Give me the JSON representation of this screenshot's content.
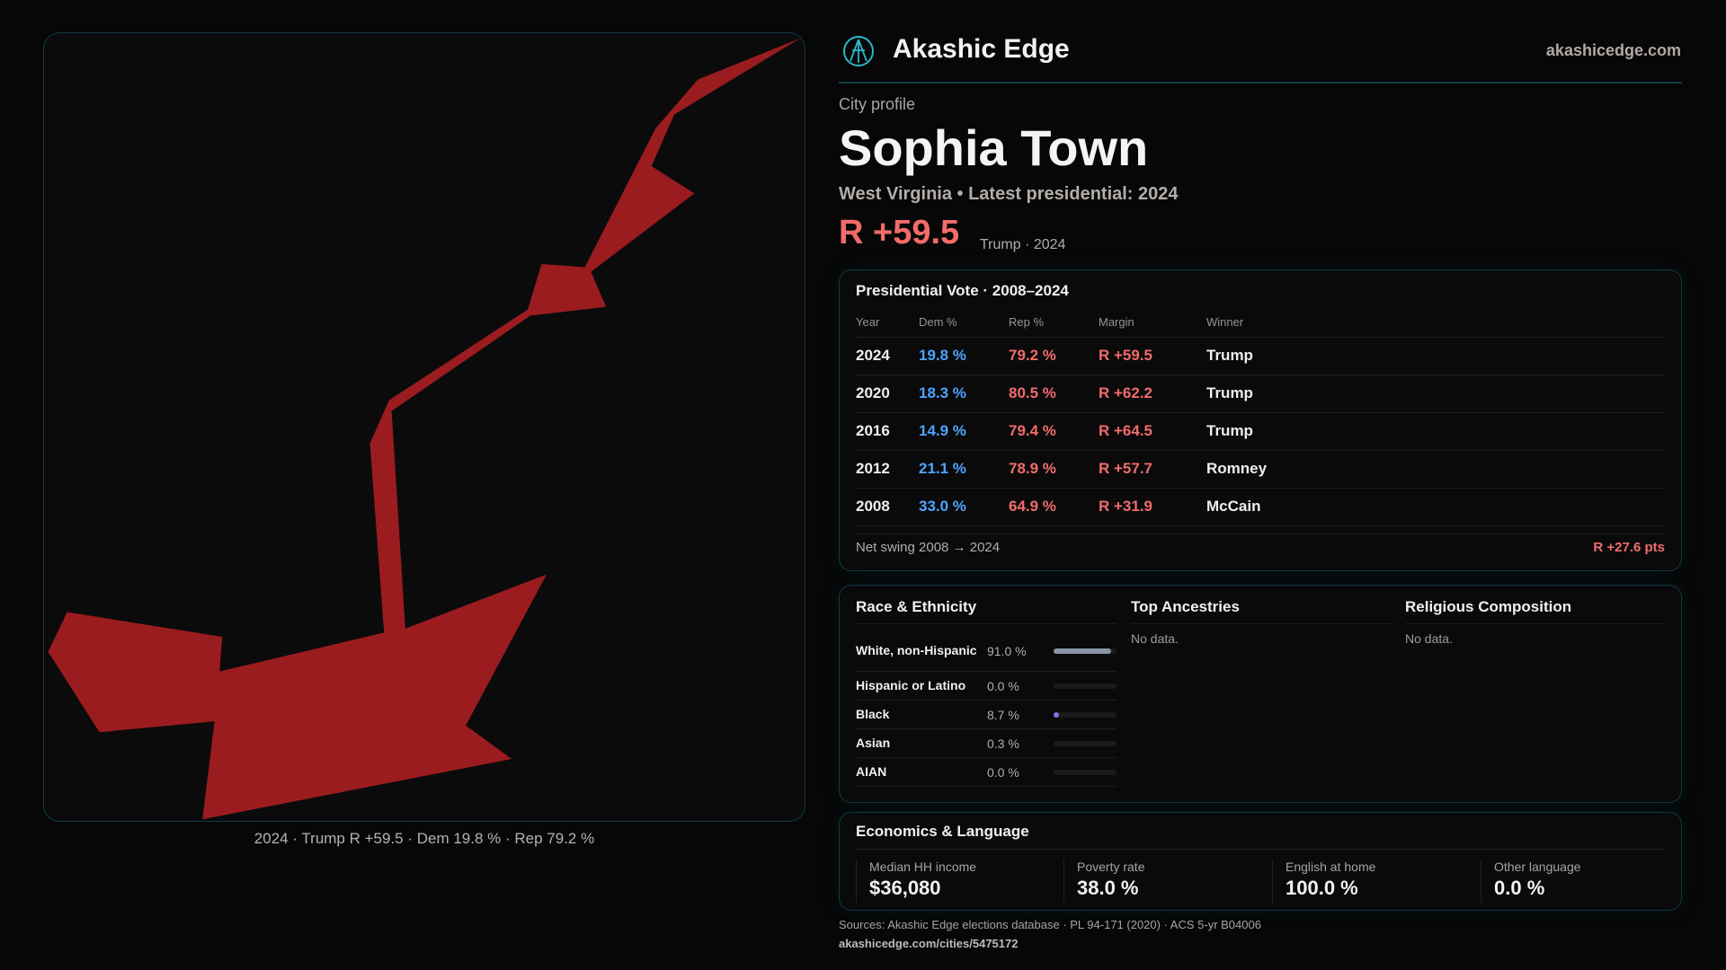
{
  "colors": {
    "map_fill": "#9b1c1f",
    "rep": "#f26b6b",
    "dem": "#4fa3ff",
    "border": "#0f3b44"
  },
  "map": {
    "caption": "2024 · Trump R +59.5 · Dem 19.8 % · Rep 79.2 %"
  },
  "header": {
    "brand": "Akashic Edge",
    "logo_icon": "akashic-logo-icon",
    "site": "akashicedge.com"
  },
  "profile": {
    "kicker": "City profile",
    "title": "Sophia Town",
    "subtitle": "West Virginia • Latest presidential: 2024",
    "margin": "R +59.5",
    "margin_sub": "Trump · 2024"
  },
  "votes": {
    "title": "Presidential Vote · 2008–2024",
    "columns": [
      "Year",
      "Dem %",
      "Rep %",
      "Margin",
      "Winner"
    ],
    "rows": [
      [
        "2024",
        "19.8 %",
        "79.2 %",
        "R +59.5",
        "Trump"
      ],
      [
        "2020",
        "18.3 %",
        "80.5 %",
        "R +62.2",
        "Trump"
      ],
      [
        "2016",
        "14.9 %",
        "79.4 %",
        "R +64.5",
        "Trump"
      ],
      [
        "2012",
        "21.1 %",
        "78.9 %",
        "R +57.7",
        "Romney"
      ],
      [
        "2008",
        "33.0 %",
        "64.9 %",
        "R +31.9",
        "McCain"
      ]
    ],
    "swing_label": "Net swing 2008 → 2024",
    "swing_value": "R +27.6 pts"
  },
  "race": {
    "title": "Race & Ethnicity",
    "rows": [
      {
        "label": "White, non-Hispanic",
        "pct": "91.0 %",
        "value": 91.0,
        "color": "#8a93a8"
      },
      {
        "label": "Hispanic or Latino",
        "pct": "0.0 %",
        "value": 0.0,
        "color": "#8a93a8"
      },
      {
        "label": "Black",
        "pct": "8.7 %",
        "value": 8.7,
        "color": "#8b6fe0"
      },
      {
        "label": "Asian",
        "pct": "0.3 %",
        "value": 0.3,
        "color": "#8a93a8"
      },
      {
        "label": "AIAN",
        "pct": "0.0 %",
        "value": 0.0,
        "color": "#8a93a8"
      }
    ]
  },
  "ancestries": {
    "title": "Top Ancestries",
    "empty": "No data."
  },
  "religion": {
    "title": "Religious Composition",
    "empty": "No data."
  },
  "econ": {
    "title": "Economics & Language",
    "stats": [
      {
        "label": "Median HH income",
        "value": "$36,080"
      },
      {
        "label": "Poverty rate",
        "value": "38.0 %"
      },
      {
        "label": "English at home",
        "value": "100.0 %"
      },
      {
        "label": "Other language",
        "value": "0.0 %"
      }
    ]
  },
  "footer": {
    "sources": "Sources: Akashic Edge elections database · PL 94-171 (2020) · ACS 5-yr B04006",
    "url": "akashicedge.com/cities/5475172"
  }
}
